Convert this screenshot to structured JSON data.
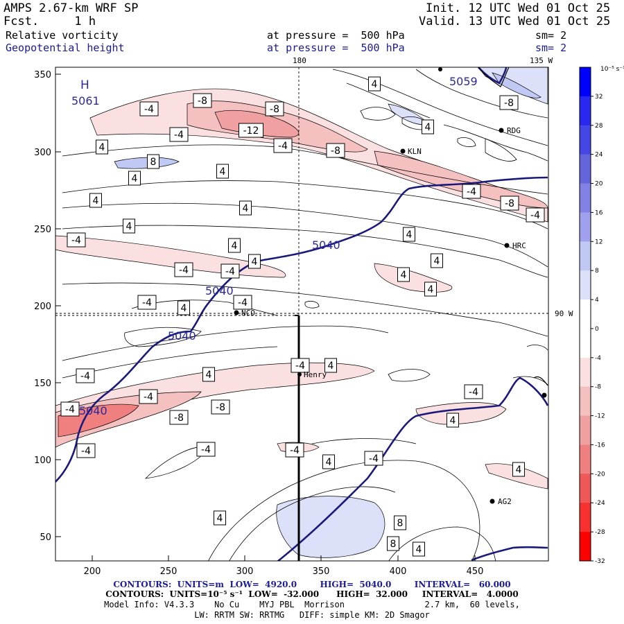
{
  "header": {
    "model_title": "AMPS 2.67-km WRF SP",
    "forecast": "Fcst.     1 h",
    "init": "Init. 12 UTC Wed 01 Oct 25",
    "valid": "Valid. 13 UTC Wed 01 Oct 25",
    "field1_name": "Relative vorticity",
    "field1_level": "at pressure =  500 hPa",
    "field1_smooth": "sm= 2",
    "field2_name": "Geopotential height",
    "field2_level": "at pressure =  500 hPa",
    "field2_smooth": "sm= 2"
  },
  "map": {
    "meridian_top_label": "180",
    "meridian_right_top_label": "135 W",
    "parallel_right_label": "90 W",
    "x_ticks": [
      "200",
      "250",
      "300",
      "350",
      "400",
      "450"
    ],
    "y_ticks": [
      "350",
      "300",
      "250",
      "200",
      "150",
      "100",
      "50"
    ],
    "high_letter": "H",
    "high_value": "5061",
    "height_labels": [
      "5059",
      "5040",
      "5040",
      "5040",
      "5040"
    ],
    "vorticity_labels": [
      "-4",
      "-8",
      "-8",
      "-4",
      "-12",
      "-4",
      "-8",
      "4",
      "8",
      "4",
      "4",
      "4",
      "4",
      "4",
      "-4",
      "4",
      "4",
      "-4",
      "-4",
      "4",
      "4",
      "4",
      "-4",
      "4",
      "-4",
      "-4",
      "4",
      "-4",
      "4",
      "-4",
      "-8",
      "-8",
      "-4",
      "-4",
      "-4",
      "-4",
      "4",
      "-4",
      "-4",
      "4",
      "4",
      "4",
      "8",
      "8",
      "4",
      "4",
      "-8",
      "4",
      "-4",
      "-8",
      "-4",
      "4"
    ],
    "stations": [
      "RDG",
      "KLN",
      "HRC",
      "NCO",
      "Henry",
      "AG2"
    ]
  },
  "colorbar": {
    "unit": "10⁻⁵ s⁻¹",
    "labels": [
      "32",
      "28",
      "24",
      "20",
      "16",
      "12",
      "8",
      "4",
      "0",
      "-4",
      "-8",
      "-12",
      "-16",
      "-20",
      "-24",
      "-28",
      "-32"
    ],
    "colors": [
      "#0000ff",
      "#2828f0",
      "#4646e6",
      "#6464dc",
      "#8282e6",
      "#a0a0ee",
      "#c0c8f4",
      "#dce0f8",
      "#ffffff",
      "#ffffff",
      "#fae0e0",
      "#f4c0c0",
      "#f0a0a0",
      "#f08080",
      "#f05858",
      "#f83030",
      "#ff0000"
    ]
  },
  "footer": {
    "line1": "CONTOURS:  UNITS=m  LOW=  4920.0        HIGH=  5040.0        INTERVAL=   60.000",
    "line2": "CONTOURS:  UNITS=10⁻⁵ s⁻¹  LOW=  -32.000      HIGH=  32.000     INTERVAL=   4.0000",
    "line3": "Model Info: V4.3.3    No Cu    MYJ PBL  Morrison                2.7 km,  60 levels,",
    "line4": "LW: RRTM SW: RRTMG   DIFF: simple KM: 2D Smagor"
  }
}
